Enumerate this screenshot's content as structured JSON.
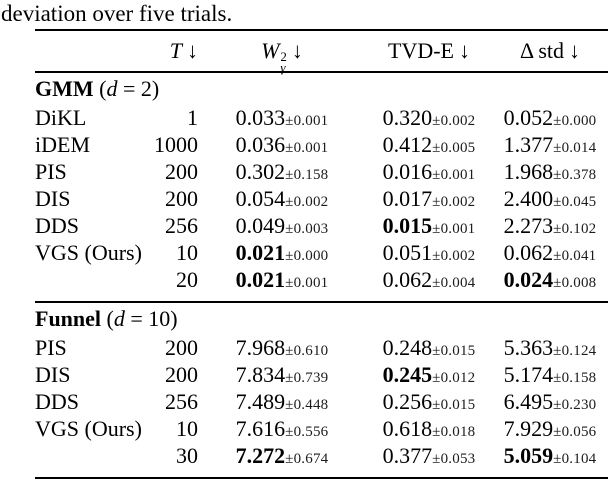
{
  "caption": "deviation over five trials.",
  "text_color": "#000000",
  "table": {
    "headers": {
      "method": "",
      "t": "T",
      "w_base": "W",
      "w_sup": "2",
      "w_sub": "γ",
      "tvd": "TVD-E",
      "delta_std": "Δ std",
      "down_arrow": "↓"
    },
    "sections": [
      {
        "name_bold": "GMM",
        "dim_open": "(",
        "dim_var": "d",
        "dim_rest": " = 2)",
        "rows": [
          {
            "method": "DiKL",
            "t": "1",
            "metrics": [
              {
                "v": "0.033",
                "std": "±0.001",
                "bold": false
              },
              {
                "v": "0.320",
                "std": "±0.002",
                "bold": false
              },
              {
                "v": "0.052",
                "std": "±0.000",
                "bold": false
              }
            ]
          },
          {
            "method": "iDEM",
            "t": "1000",
            "metrics": [
              {
                "v": "0.036",
                "std": "±0.001",
                "bold": false
              },
              {
                "v": "0.412",
                "std": "±0.005",
                "bold": false
              },
              {
                "v": "1.377",
                "std": "±0.014",
                "bold": false
              }
            ]
          },
          {
            "method": "PIS",
            "t": "200",
            "metrics": [
              {
                "v": "0.302",
                "std": "±0.158",
                "bold": false
              },
              {
                "v": "0.016",
                "std": "±0.001",
                "bold": false
              },
              {
                "v": "1.968",
                "std": "±0.378",
                "bold": false
              }
            ]
          },
          {
            "method": "DIS",
            "t": "200",
            "metrics": [
              {
                "v": "0.054",
                "std": "±0.002",
                "bold": false
              },
              {
                "v": "0.017",
                "std": "±0.002",
                "bold": false
              },
              {
                "v": "2.400",
                "std": "±0.045",
                "bold": false
              }
            ]
          },
          {
            "method": "DDS",
            "t": "256",
            "metrics": [
              {
                "v": "0.049",
                "std": "±0.003",
                "bold": false
              },
              {
                "v": "0.015",
                "std": "±0.001",
                "bold": true
              },
              {
                "v": "2.273",
                "std": "±0.102",
                "bold": false
              }
            ]
          },
          {
            "method": "VGS (Ours)",
            "t": "10",
            "metrics": [
              {
                "v": "0.021",
                "std": "±0.000",
                "bold": true
              },
              {
                "v": "0.051",
                "std": "±0.002",
                "bold": false
              },
              {
                "v": "0.062",
                "std": "±0.041",
                "bold": false
              }
            ]
          },
          {
            "method": "",
            "t": "20",
            "metrics": [
              {
                "v": "0.021",
                "std": "±0.001",
                "bold": true
              },
              {
                "v": "0.062",
                "std": "±0.004",
                "bold": false
              },
              {
                "v": "0.024",
                "std": "±0.008",
                "bold": true
              }
            ]
          }
        ]
      },
      {
        "name_bold": "Funnel",
        "dim_open": "(",
        "dim_var": "d",
        "dim_rest": " = 10)",
        "rows": [
          {
            "method": "PIS",
            "t": "200",
            "metrics": [
              {
                "v": "7.968",
                "std": "±0.610",
                "bold": false
              },
              {
                "v": "0.248",
                "std": "±0.015",
                "bold": false
              },
              {
                "v": "5.363",
                "std": "±0.124",
                "bold": false
              }
            ]
          },
          {
            "method": "DIS",
            "t": "200",
            "metrics": [
              {
                "v": "7.834",
                "std": "±0.739",
                "bold": false
              },
              {
                "v": "0.245",
                "std": "±0.012",
                "bold": true
              },
              {
                "v": "5.174",
                "std": "±0.158",
                "bold": false
              }
            ]
          },
          {
            "method": "DDS",
            "t": "256",
            "metrics": [
              {
                "v": "7.489",
                "std": "±0.448",
                "bold": false
              },
              {
                "v": "0.256",
                "std": "±0.015",
                "bold": false
              },
              {
                "v": "6.495",
                "std": "±0.230",
                "bold": false
              }
            ]
          },
          {
            "method": "VGS (Ours)",
            "t": "10",
            "metrics": [
              {
                "v": "7.616",
                "std": "±0.556",
                "bold": false
              },
              {
                "v": "0.618",
                "std": "±0.018",
                "bold": false
              },
              {
                "v": "7.929",
                "std": "±0.056",
                "bold": false
              }
            ]
          },
          {
            "method": "",
            "t": "30",
            "metrics": [
              {
                "v": "7.272",
                "std": "±0.674",
                "bold": true
              },
              {
                "v": "0.377",
                "std": "±0.053",
                "bold": false
              },
              {
                "v": "5.059",
                "std": "±0.104",
                "bold": true
              }
            ]
          }
        ]
      }
    ]
  }
}
